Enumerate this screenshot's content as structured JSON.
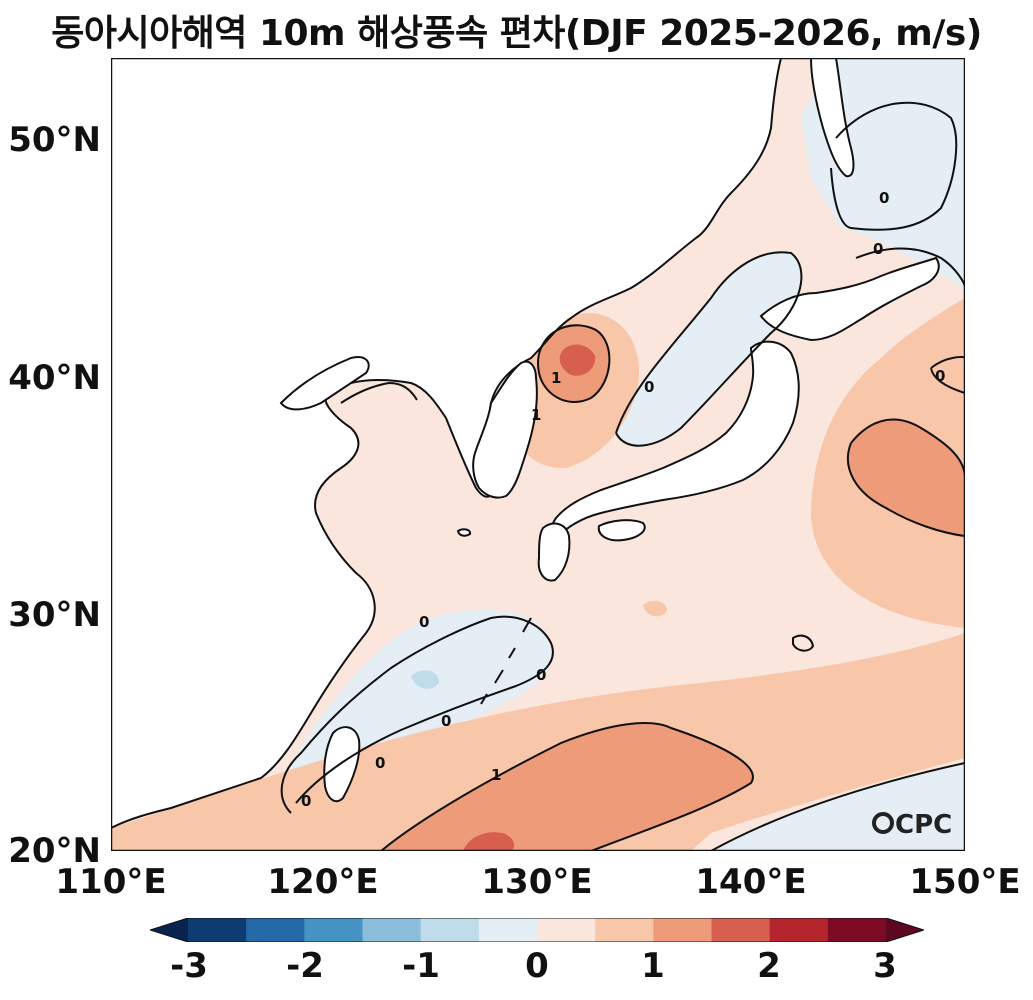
{
  "title": "동아시아해역 10m 해상풍속 편차(DJF 2025-2026, m/s)",
  "map": {
    "lat_labels": [
      "50°N",
      "40°N",
      "30°N",
      "20°N"
    ],
    "lon_labels": [
      "110°E",
      "120°E",
      "130°E",
      "140°E",
      "150°E"
    ],
    "lat_range": [
      20,
      53.5
    ],
    "lon_range": [
      110,
      150
    ],
    "contour_labels": [
      "0",
      "0",
      "0",
      "0",
      "0",
      "0",
      "0",
      "0",
      "0",
      "1",
      "1",
      "1"
    ],
    "logo": "CPC"
  },
  "colorbar": {
    "ticks": [
      "-3",
      "-2",
      "-1",
      "0",
      "1",
      "2",
      "3"
    ],
    "levels": [
      -3,
      -2.5,
      -2,
      -1.5,
      -1,
      -0.5,
      0,
      0.5,
      1,
      1.5,
      2,
      2.5,
      3
    ],
    "colors": [
      "#0d3c71",
      "#2469a8",
      "#4592c4",
      "#8bbdda",
      "#c0dbe9",
      "#e4eef4",
      "#fbe6dd",
      "#f8c6a9",
      "#ee9b7a",
      "#d6604d",
      "#b4252d",
      "#7e0b25"
    ],
    "extend_low": "#08234e",
    "extend_high": "#5e0720"
  }
}
